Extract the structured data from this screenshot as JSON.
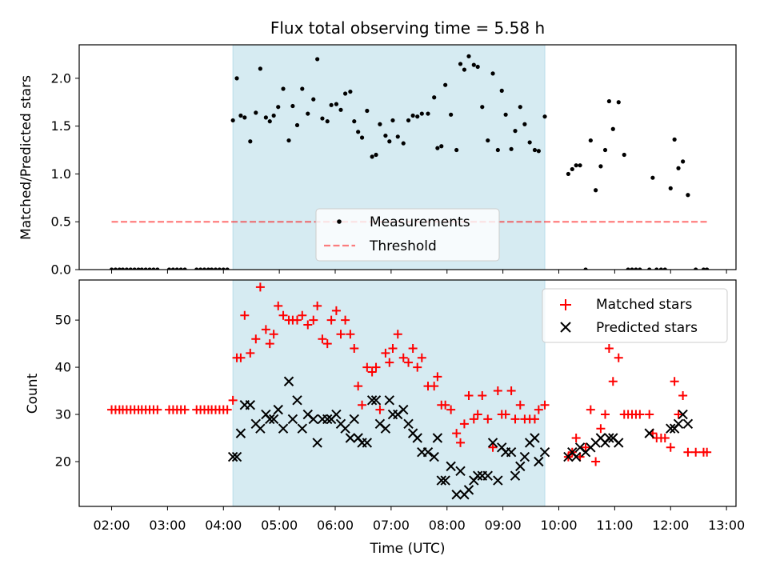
{
  "figure": {
    "title": "Flux total observing time = 5.58 h",
    "xlabel": "Time (UTC)",
    "top_ylabel": "Matched/Predicted stars",
    "bottom_ylabel": "Count"
  },
  "colors": {
    "shade": "#add8e6",
    "measurement": "#000000",
    "threshold": "#ff0000",
    "matched": "#ff0000",
    "predicted": "#000000"
  },
  "chart_data": [
    {
      "type": "scatter",
      "panel": "top",
      "title": "Flux total observing time = 5.58 h",
      "xlabel": "",
      "ylabel": "Matched/Predicted stars",
      "xlim": [
        1.42,
        13.17
      ],
      "ylim": [
        0.0,
        2.35
      ],
      "x_ticks": [
        "02:00",
        "03:00",
        "04:00",
        "05:00",
        "06:00",
        "07:00",
        "08:00",
        "09:00",
        "10:00",
        "11:00",
        "12:00",
        "13:00"
      ],
      "y_ticks": [
        "0.0",
        "0.5",
        "1.0",
        "1.5",
        "2.0"
      ],
      "y_tick_values": [
        0,
        0.5,
        1.0,
        1.5,
        2.0
      ],
      "grid": false,
      "legend": "lower-center",
      "shaded_span": [
        4.17,
        9.75
      ],
      "series": [
        {
          "name": "Measurements",
          "kind": "points",
          "x": [
            2.0,
            2.07,
            2.14,
            2.2,
            2.27,
            2.34,
            2.41,
            2.48,
            2.54,
            2.61,
            2.68,
            2.75,
            2.82,
            3.03,
            3.1,
            3.17,
            3.24,
            3.31,
            3.52,
            3.59,
            3.66,
            3.73,
            3.79,
            3.86,
            3.93,
            4.0,
            4.07,
            4.17,
            4.24,
            4.31,
            4.38,
            4.48,
            4.58,
            4.66,
            4.76,
            4.83,
            4.9,
            4.98,
            5.07,
            5.17,
            5.24,
            5.32,
            5.41,
            5.51,
            5.61,
            5.68,
            5.77,
            5.86,
            5.93,
            6.02,
            6.1,
            6.18,
            6.27,
            6.34,
            6.41,
            6.48,
            6.57,
            6.66,
            6.73,
            6.8,
            6.9,
            6.97,
            7.03,
            7.12,
            7.22,
            7.31,
            7.39,
            7.47,
            7.55,
            7.66,
            7.77,
            7.83,
            7.9,
            7.97,
            8.07,
            8.17,
            8.24,
            8.31,
            8.39,
            8.48,
            8.55,
            8.63,
            8.73,
            8.82,
            8.91,
            8.98,
            9.05,
            9.15,
            9.22,
            9.31,
            9.39,
            9.48,
            9.57,
            9.64,
            9.75,
            10.17,
            10.24,
            10.31,
            10.38,
            10.48,
            10.57,
            10.66,
            10.75,
            10.83,
            10.9,
            10.97,
            11.07,
            11.17,
            11.24,
            11.31,
            11.38,
            11.45,
            11.62,
            11.68,
            11.75,
            11.83,
            11.9,
            12.0,
            12.07,
            12.14,
            12.22,
            12.31,
            12.45,
            12.59,
            12.65
          ],
          "y": [
            0,
            0,
            0,
            0,
            0,
            0,
            0,
            0,
            0,
            0,
            0,
            0,
            0,
            0,
            0,
            0,
            0,
            0,
            0,
            0,
            0,
            0,
            0,
            0,
            0,
            0,
            0,
            1.56,
            2.0,
            1.61,
            1.59,
            1.34,
            1.64,
            2.1,
            1.59,
            1.55,
            1.61,
            1.7,
            1.89,
            1.35,
            1.71,
            1.51,
            1.89,
            1.63,
            1.78,
            2.2,
            1.58,
            1.55,
            1.72,
            1.73,
            1.67,
            1.84,
            1.86,
            1.55,
            1.44,
            1.38,
            1.66,
            1.18,
            1.2,
            1.52,
            1.4,
            1.34,
            1.56,
            1.39,
            1.32,
            1.56,
            1.61,
            1.6,
            1.63,
            1.63,
            1.8,
            1.27,
            1.29,
            1.93,
            1.62,
            1.25,
            2.15,
            2.09,
            2.23,
            2.14,
            2.12,
            1.7,
            1.35,
            2.05,
            1.25,
            1.87,
            1.62,
            1.26,
            1.45,
            1.7,
            1.52,
            1.33,
            1.25,
            1.24,
            1.6,
            1.0,
            1.05,
            1.09,
            1.09,
            0,
            1.35,
            0.83,
            1.08,
            1.25,
            1.76,
            1.47,
            1.75,
            1.2,
            0,
            0,
            0,
            0,
            0,
            0.96,
            0,
            0,
            0,
            0.85,
            1.36,
            1.06,
            1.13,
            0.78,
            0,
            0,
            0
          ]
        },
        {
          "name": "Threshold",
          "kind": "dashed-line",
          "x": [
            2.0,
            12.65
          ],
          "y": [
            0.5,
            0.5
          ]
        }
      ]
    },
    {
      "type": "scatter",
      "panel": "bottom",
      "xlabel": "Time (UTC)",
      "ylabel": "Count",
      "xlim": [
        1.42,
        13.17
      ],
      "ylim": [
        10.5,
        58.5
      ],
      "x_ticks": [
        "02:00",
        "03:00",
        "04:00",
        "05:00",
        "06:00",
        "07:00",
        "08:00",
        "09:00",
        "10:00",
        "11:00",
        "12:00",
        "13:00"
      ],
      "y_ticks": [
        "20",
        "30",
        "40",
        "50"
      ],
      "y_tick_values": [
        20,
        30,
        40,
        50
      ],
      "grid": false,
      "legend": "top-right",
      "shaded_span": [
        4.17,
        9.75
      ],
      "series": [
        {
          "name": "Matched stars",
          "kind": "plus",
          "x": [
            2.0,
            2.07,
            2.14,
            2.2,
            2.27,
            2.34,
            2.41,
            2.48,
            2.54,
            2.61,
            2.68,
            2.75,
            2.82,
            3.03,
            3.1,
            3.17,
            3.24,
            3.31,
            3.52,
            3.59,
            3.66,
            3.73,
            3.79,
            3.86,
            3.93,
            4.0,
            4.07,
            4.17,
            4.24,
            4.31,
            4.38,
            4.48,
            4.58,
            4.66,
            4.76,
            4.83,
            4.9,
            4.98,
            5.07,
            5.17,
            5.24,
            5.32,
            5.41,
            5.51,
            5.61,
            5.68,
            5.77,
            5.86,
            5.93,
            6.02,
            6.1,
            6.18,
            6.27,
            6.34,
            6.41,
            6.48,
            6.57,
            6.66,
            6.73,
            6.8,
            6.9,
            6.97,
            7.03,
            7.12,
            7.22,
            7.31,
            7.39,
            7.47,
            7.55,
            7.66,
            7.77,
            7.83,
            7.9,
            7.97,
            8.07,
            8.17,
            8.24,
            8.31,
            8.39,
            8.48,
            8.55,
            8.63,
            8.73,
            8.82,
            8.91,
            8.98,
            9.05,
            9.15,
            9.22,
            9.31,
            9.39,
            9.48,
            9.57,
            9.64,
            9.75,
            10.17,
            10.24,
            10.31,
            10.38,
            10.48,
            10.57,
            10.66,
            10.75,
            10.83,
            10.9,
            10.97,
            11.07,
            11.17,
            11.24,
            11.31,
            11.38,
            11.45,
            11.62,
            11.68,
            11.75,
            11.83,
            11.9,
            12.0,
            12.07,
            12.14,
            12.22,
            12.31,
            12.45,
            12.59,
            12.65
          ],
          "y": [
            31,
            31,
            31,
            31,
            31,
            31,
            31,
            31,
            31,
            31,
            31,
            31,
            31,
            31,
            31,
            31,
            31,
            31,
            31,
            31,
            31,
            31,
            31,
            31,
            31,
            31,
            31,
            33,
            42,
            42,
            51,
            43,
            46,
            57,
            48,
            45,
            47,
            53,
            51,
            50,
            50,
            50,
            51,
            49,
            50,
            53,
            46,
            45,
            50,
            52,
            47,
            50,
            47,
            44,
            36,
            32,
            40,
            39,
            40,
            31,
            43,
            41,
            44,
            47,
            42,
            41,
            44,
            40,
            42,
            36,
            36,
            38,
            32,
            32,
            31,
            26,
            24,
            28,
            34,
            29,
            30,
            34,
            29,
            23,
            35,
            30,
            30,
            35,
            29,
            32,
            29,
            29,
            29,
            31,
            32,
            21,
            22,
            25,
            21,
            23,
            31,
            20,
            27,
            30,
            44,
            37,
            42,
            30,
            30,
            30,
            30,
            30,
            30,
            26,
            25,
            25,
            25,
            23,
            37,
            30,
            34,
            22,
            22,
            22,
            22
          ]
        },
        {
          "name": "Predicted stars",
          "kind": "x",
          "x": [
            4.17,
            4.24,
            4.31,
            4.38,
            4.48,
            4.58,
            4.66,
            4.76,
            4.83,
            4.9,
            4.98,
            5.07,
            5.17,
            5.24,
            5.32,
            5.41,
            5.51,
            5.61,
            5.68,
            5.77,
            5.86,
            5.93,
            6.02,
            6.1,
            6.18,
            6.27,
            6.34,
            6.41,
            6.48,
            6.57,
            6.66,
            6.73,
            6.8,
            6.9,
            6.97,
            7.03,
            7.12,
            7.22,
            7.31,
            7.39,
            7.47,
            7.55,
            7.66,
            7.77,
            7.83,
            7.9,
            7.97,
            8.07,
            8.17,
            8.24,
            8.31,
            8.39,
            8.48,
            8.55,
            8.63,
            8.73,
            8.82,
            8.91,
            8.98,
            9.05,
            9.15,
            9.22,
            9.31,
            9.39,
            9.48,
            9.57,
            9.64,
            9.75,
            10.17,
            10.24,
            10.31,
            10.38,
            10.48,
            10.57,
            10.66,
            10.75,
            10.83,
            10.9,
            10.97,
            11.07,
            11.62,
            12.0,
            12.07,
            12.14,
            12.22,
            12.31
          ],
          "y": [
            21,
            21,
            26,
            32,
            32,
            28,
            27,
            30,
            29,
            29,
            31,
            27,
            37,
            29,
            33,
            27,
            30,
            29,
            24,
            29,
            29,
            29,
            30,
            28,
            27,
            25,
            29,
            25,
            24,
            24,
            33,
            33,
            28,
            27,
            33,
            30,
            30,
            31,
            28,
            26,
            25,
            22,
            22,
            21,
            25,
            16,
            16,
            19,
            13,
            18,
            13,
            14,
            16,
            17,
            17,
            17,
            24,
            16,
            23,
            22,
            22,
            17,
            19,
            21,
            24,
            25,
            20,
            22,
            21,
            22,
            21,
            23,
            22,
            23,
            24,
            25,
            24,
            25,
            25,
            24,
            26,
            27,
            27,
            28,
            30,
            28
          ]
        }
      ]
    }
  ]
}
